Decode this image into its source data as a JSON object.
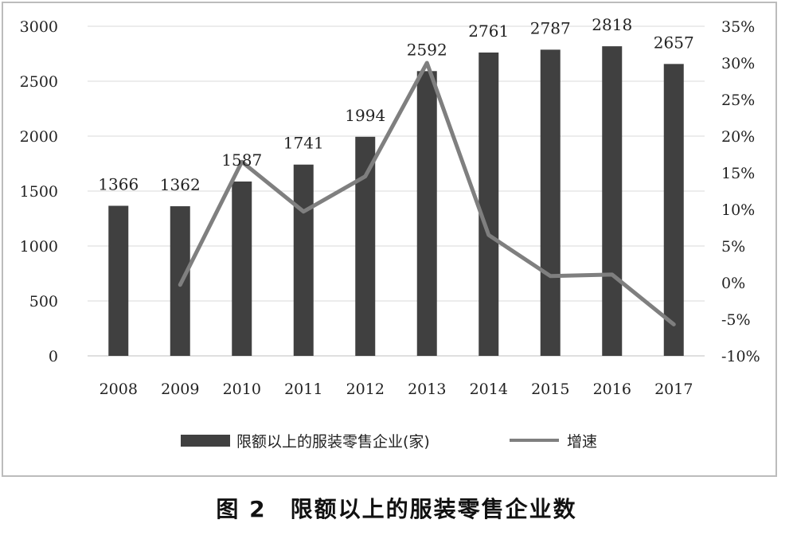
{
  "chart_data": {
    "type": "bar",
    "categories": [
      "2008",
      "2009",
      "2010",
      "2011",
      "2012",
      "2013",
      "2014",
      "2015",
      "2016",
      "2017"
    ],
    "series": [
      {
        "name": "限额以上的服装零售企业(家)",
        "type": "bar",
        "axis": "left",
        "color": "#404040",
        "values": [
          1366,
          1362,
          1587,
          1741,
          1994,
          2592,
          2761,
          2787,
          2818,
          2657
        ],
        "data_labels": [
          "1366",
          "1362",
          "1587",
          "1741",
          "1994",
          "2592",
          "2761",
          "2787",
          "2818",
          "2657"
        ]
      },
      {
        "name": "增速",
        "type": "line",
        "axis": "right",
        "color": "#7f7f7f",
        "values": [
          null,
          -0.3,
          16.5,
          9.7,
          14.5,
          30.0,
          6.5,
          0.9,
          1.1,
          -5.7
        ]
      }
    ],
    "left_axis": {
      "ylim": [
        0,
        3000
      ],
      "ticks": [
        "0",
        "500",
        "1000",
        "1500",
        "2000",
        "2500",
        "3000"
      ]
    },
    "right_axis": {
      "ylim": [
        -10,
        35
      ],
      "ticks": [
        "-10%",
        "-5%",
        "0%",
        "5%",
        "10%",
        "15%",
        "20%",
        "25%",
        "30%",
        "35%"
      ]
    },
    "grid": true,
    "legend_position": "bottom"
  },
  "caption": "图 2　限额以上的服装零售企业数"
}
